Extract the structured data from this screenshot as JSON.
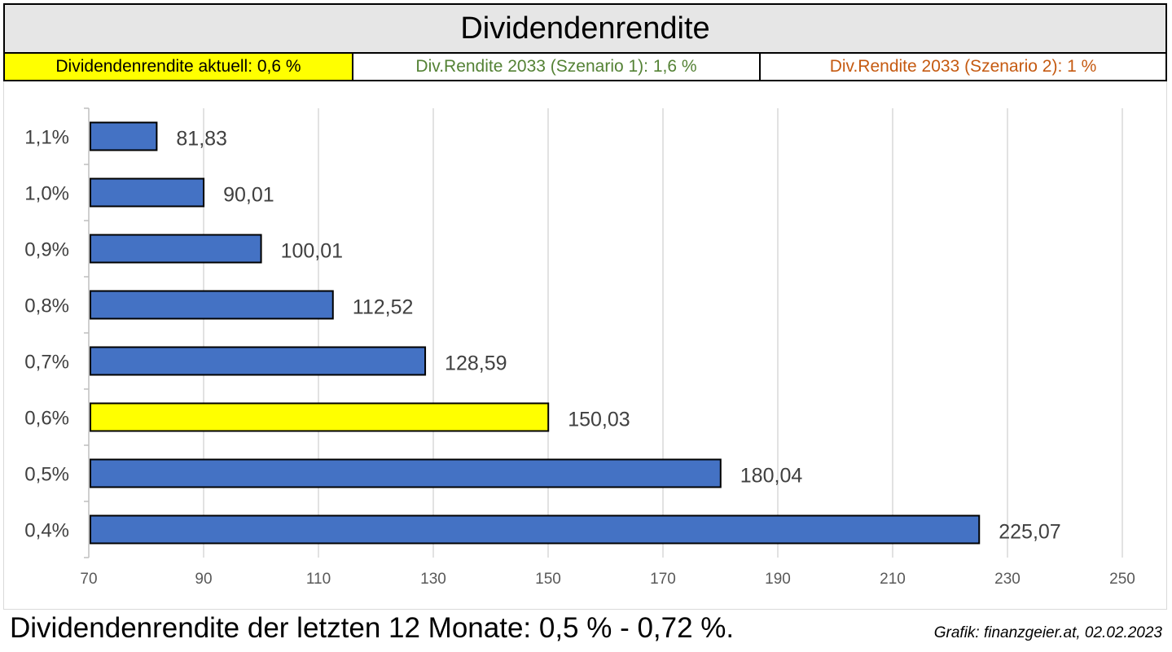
{
  "header": {
    "title": "Dividendenrendite",
    "current_yield_label": "Dividendenrendite aktuell: 0,6 %",
    "scenario1_label": "Div.Rendite 2033 (Szenario 1): 1,6 %",
    "scenario2_label": "Div.Rendite 2033 (Szenario 2): 1 %"
  },
  "colors": {
    "bar_default": "#4472c4",
    "bar_highlight": "#ffff00",
    "scenario1_text": "#548235",
    "scenario2_text": "#c55a11"
  },
  "chart_data": {
    "type": "bar",
    "orientation": "horizontal",
    "categories": [
      "1,1%",
      "1,0%",
      "0,9%",
      "0,8%",
      "0,7%",
      "0,6%",
      "0,5%",
      "0,4%"
    ],
    "values": [
      81.83,
      90.01,
      100.01,
      112.52,
      128.59,
      150.03,
      180.04,
      225.07
    ],
    "value_labels": [
      "81,83",
      "90,01",
      "100,01",
      "112,52",
      "128,59",
      "150,03",
      "180,04",
      "225,07"
    ],
    "highlight_category": "0,6%",
    "xlim": [
      70,
      250
    ],
    "xticks": [
      70,
      90,
      110,
      130,
      150,
      170,
      190,
      210,
      230,
      250
    ],
    "grid": true,
    "legend": "none"
  },
  "footer": {
    "summary": "Dividendenrendite der letzten 12 Monate: 0,5 % - 0,72 %.",
    "credit": "Grafik: finanzgeier.at, 02.02.2023"
  }
}
